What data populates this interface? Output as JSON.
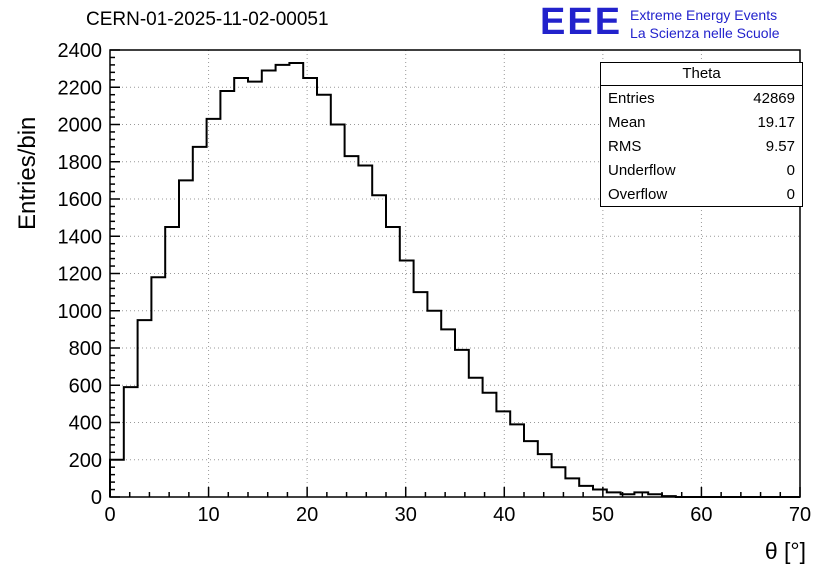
{
  "header": {
    "title": "CERN-01-2025-11-02-00051",
    "logo": {
      "text": "EEE",
      "line1": "Extreme Energy Events",
      "line2": "La Scienza nelle Scuole",
      "color": "#2222cc"
    }
  },
  "stats": {
    "title": "Theta",
    "rows": [
      {
        "label": "Entries",
        "value": "42869"
      },
      {
        "label": "Mean",
        "value": "19.17"
      },
      {
        "label": "RMS",
        "value": "9.57"
      },
      {
        "label": "Underflow",
        "value": "0"
      },
      {
        "label": "Overflow",
        "value": "0"
      }
    ]
  },
  "chart_data": {
    "type": "bar",
    "subtype": "step-histogram",
    "title": "CERN-01-2025-11-02-00051",
    "xlabel": "θ [°]",
    "ylabel": "Entries/bin",
    "xlim": [
      0,
      70
    ],
    "ylim": [
      0,
      2400
    ],
    "x_ticks": [
      0,
      10,
      20,
      30,
      40,
      50,
      60,
      70
    ],
    "y_ticks": [
      0,
      200,
      400,
      600,
      800,
      1000,
      1200,
      1400,
      1600,
      1800,
      2000,
      2200,
      2400
    ],
    "x_minor_step": 2,
    "y_minor_step": 40,
    "grid": true,
    "grid_color": "#999999",
    "line_color": "#000000",
    "bin_start": 0,
    "bin_width": 1.4,
    "values": [
      200,
      590,
      950,
      1180,
      1450,
      1700,
      1880,
      2030,
      2180,
      2250,
      2230,
      2290,
      2320,
      2330,
      2250,
      2160,
      2000,
      1830,
      1780,
      1620,
      1450,
      1270,
      1100,
      1000,
      900,
      790,
      640,
      560,
      460,
      390,
      300,
      230,
      160,
      100,
      60,
      40,
      25,
      15,
      25,
      15,
      5,
      0,
      0,
      0,
      0,
      0,
      0,
      0,
      0,
      0
    ],
    "legend": null
  }
}
